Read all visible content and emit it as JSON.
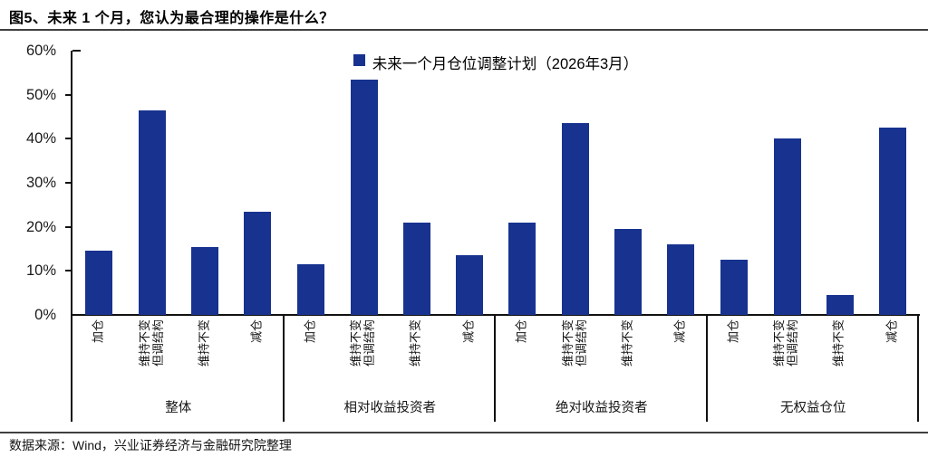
{
  "title": "图5、未来 1 个月，您认为最合理的操作是什么？",
  "source": "数据来源：Wind，兴业证券经济与金融研究院整理",
  "colors": {
    "bar": "#17328F",
    "axis": "#111111",
    "rule": "#3f3f3f"
  },
  "chart_data": {
    "type": "bar",
    "title": "",
    "legend": "未来一个月仓位调整计划（2026年3月）",
    "legend_position": "top-center",
    "unit": "%",
    "ylim": [
      0,
      60
    ],
    "ytick_interval": 10,
    "ytick_labels": [
      "0%",
      "10%",
      "20%",
      "30%",
      "40%",
      "50%",
      "60%"
    ],
    "grid": false,
    "categories": [
      "加仓",
      "维持不变\n但调结构",
      "维持不变",
      "减仓"
    ],
    "groups": [
      {
        "label": "整体",
        "values": [
          14.5,
          46.5,
          15.5,
          23.5
        ]
      },
      {
        "label": "相对收益投资者",
        "values": [
          11.5,
          53.5,
          21.0,
          13.5
        ]
      },
      {
        "label": "绝对收益投资者",
        "values": [
          21.0,
          43.5,
          19.5,
          16.0
        ]
      },
      {
        "label": "无权益仓位",
        "values": [
          12.5,
          40.0,
          4.5,
          42.5
        ]
      }
    ]
  }
}
